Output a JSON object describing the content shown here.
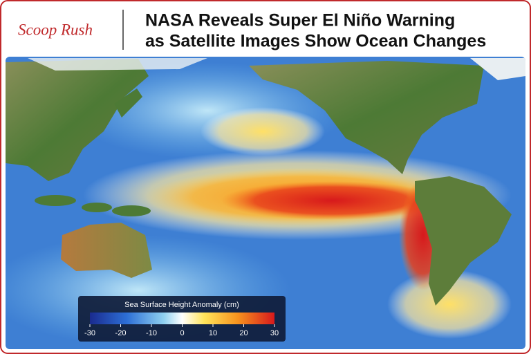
{
  "header": {
    "brand": "Scoop Rush",
    "headline": [
      "NASA Reveals Super El Niño Warning",
      "as Satellite Images Show Ocean Changes"
    ]
  },
  "legend": {
    "title": "Sea Surface Height Anomaly (cm)",
    "range": [
      -30,
      30
    ],
    "ticks": [
      -30,
      -20,
      -10,
      0,
      10,
      20,
      30
    ]
  }
}
